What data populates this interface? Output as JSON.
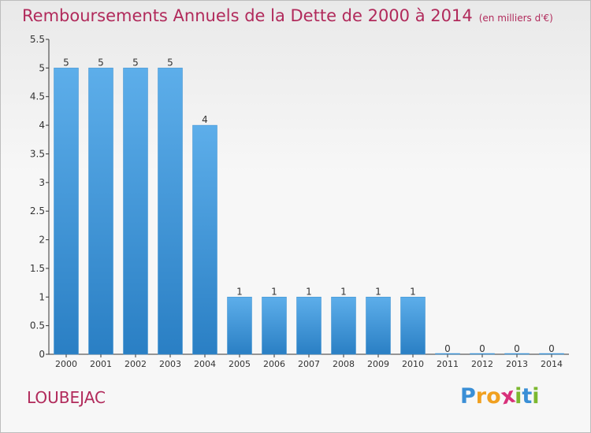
{
  "title": "Remboursements Annuels de la Dette de 2000 à 2014",
  "unit_note": "(en milliers d'€)",
  "town": "LOUBEJAC",
  "logo": {
    "text": "Proxiti",
    "letters": [
      {
        "ch": "P",
        "color": "#3a8fd6"
      },
      {
        "ch": "r",
        "color": "#f0a020"
      },
      {
        "ch": "o",
        "color": "#f0a020"
      },
      {
        "ch": "x",
        "color": "#d8307a"
      },
      {
        "ch": "i",
        "color": "#7cb82f"
      },
      {
        "ch": "t",
        "color": "#3a8fd6"
      },
      {
        "ch": "i",
        "color": "#7cb82f"
      }
    ]
  },
  "colors": {
    "bar_top": "#5daeea",
    "bar_bottom": "#2a7fc4",
    "title": "#b12a5b",
    "axis": "#333333"
  },
  "chart_data": {
    "type": "bar",
    "categories": [
      "2000",
      "2001",
      "2002",
      "2003",
      "2004",
      "2005",
      "2006",
      "2007",
      "2008",
      "2009",
      "2010",
      "2011",
      "2012",
      "2013",
      "2014"
    ],
    "values": [
      5,
      5,
      5,
      5,
      4,
      1,
      1,
      1,
      1,
      1,
      1,
      0,
      0,
      0,
      0
    ],
    "value_labels": [
      "5",
      "5",
      "5",
      "5",
      "4",
      "1",
      "1",
      "1",
      "1",
      "1",
      "1",
      "0",
      "0",
      "0",
      "0"
    ],
    "yticks": [
      "0",
      "0.5",
      "1",
      "1.5",
      "2",
      "2.5",
      "3",
      "3.5",
      "4",
      "4.5",
      "5",
      "5.5"
    ],
    "ylim": [
      0,
      5.5
    ],
    "grid": false
  }
}
